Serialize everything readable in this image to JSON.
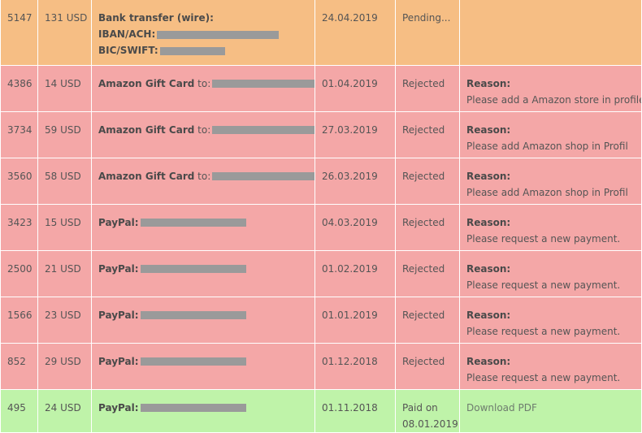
{
  "rows": [
    {
      "id": "5147",
      "amount": "131 USD",
      "method": "Bank transfer (wire):",
      "iban_label": "IBAN/ACH:",
      "bic_label": "BIC/SWIFT:",
      "date": "24.04.2019",
      "status": "Pending..."
    },
    {
      "id": "4386",
      "amount": "14 USD",
      "method": "Amazon Gift Card",
      "method_suffix": " to:",
      "date": "01.04.2019",
      "status": "Rejected",
      "reason_label": "Reason:",
      "reason": "Please add a Amazon store in profile"
    },
    {
      "id": "3734",
      "amount": "59 USD",
      "method": "Amazon Gift Card",
      "method_suffix": " to:",
      "date": "27.03.2019",
      "status": "Rejected",
      "reason_label": "Reason:",
      "reason": "Please add Amazon shop in Profil"
    },
    {
      "id": "3560",
      "amount": "58 USD",
      "method": "Amazon Gift Card",
      "method_suffix": " to:",
      "date": "26.03.2019",
      "status": "Rejected",
      "reason_label": "Reason:",
      "reason": "Please add Amazon shop in Profil"
    },
    {
      "id": "3423",
      "amount": "15 USD",
      "method": "PayPal:",
      "date": "04.03.2019",
      "status": "Rejected",
      "reason_label": "Reason:",
      "reason": "Please request a new payment."
    },
    {
      "id": "2500",
      "amount": "21 USD",
      "method": "PayPal:",
      "date": "01.02.2019",
      "status": "Rejected",
      "reason_label": "Reason:",
      "reason": "Please request a new payment."
    },
    {
      "id": "1566",
      "amount": "23 USD",
      "method": "PayPal:",
      "date": "01.01.2019",
      "status": "Rejected",
      "reason_label": "Reason:",
      "reason": "Please request a new payment."
    },
    {
      "id": "852",
      "amount": "29 USD",
      "method": "PayPal:",
      "date": "01.12.2018",
      "status": "Rejected",
      "reason_label": "Reason:",
      "reason": "Please request a new payment."
    },
    {
      "id": "495",
      "amount": "24 USD",
      "method": "PayPal:",
      "date": "01.11.2018",
      "status_line1": "Paid on",
      "status_line2": "08.01.2019",
      "action": "Download PDF"
    }
  ],
  "colors": {
    "pending": "#f6be84",
    "rejected": "#f4a7a7",
    "paid": "#bff3a9",
    "redaction": "#9a9a9a"
  }
}
